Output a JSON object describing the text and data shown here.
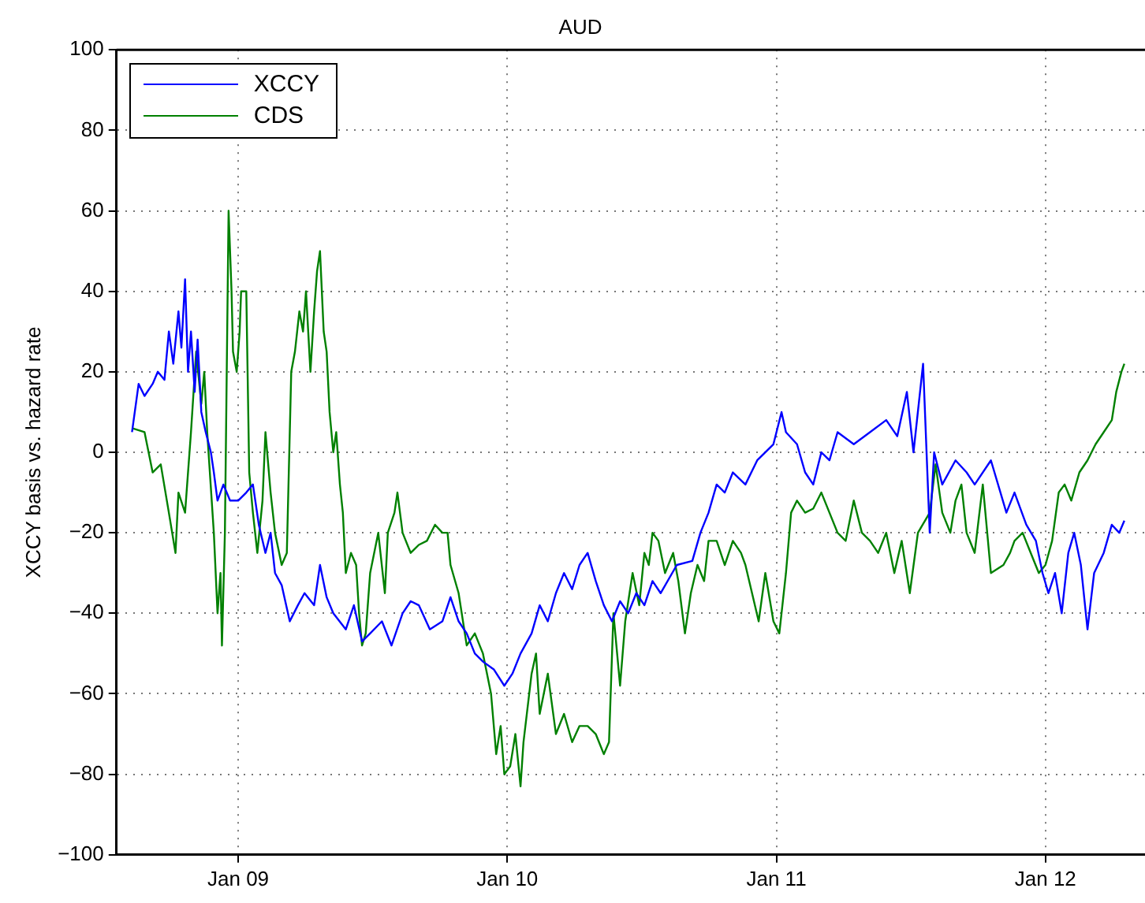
{
  "chart_data": {
    "type": "line",
    "title": "AUD",
    "ylabel": "XCCY basis vs. hazard rate",
    "xlim": [
      "2008-07-20",
      "2012-05-15"
    ],
    "xticks": [
      {
        "value": "2009-01-01",
        "label": "Jan 09"
      },
      {
        "value": "2010-01-01",
        "label": "Jan 10"
      },
      {
        "value": "2011-01-01",
        "label": "Jan 11"
      },
      {
        "value": "2012-01-01",
        "label": "Jan 12"
      }
    ],
    "ylim": [
      -100,
      100
    ],
    "yticks": [
      -100,
      -80,
      -60,
      -40,
      -20,
      0,
      20,
      40,
      60,
      80,
      100
    ],
    "grid": true,
    "legend": "top left",
    "line_style": "solid",
    "series": [
      {
        "name": "XCCY",
        "color": "#0000ff",
        "x": [
          "2008-08-10",
          "2008-08-19",
          "2008-08-27",
          "2008-09-07",
          "2008-09-14",
          "2008-09-23",
          "2008-09-29",
          "2008-10-05",
          "2008-10-12",
          "2008-10-16",
          "2008-10-21",
          "2008-10-25",
          "2008-10-29",
          "2008-11-03",
          "2008-11-07",
          "2008-11-12",
          "2008-11-18",
          "2008-11-25",
          "2008-11-29",
          "2008-12-04",
          "2008-12-12",
          "2008-12-21",
          "2009-01-01",
          "2009-01-12",
          "2009-01-21",
          "2009-01-29",
          "2009-02-07",
          "2009-02-14",
          "2009-02-20",
          "2009-03-01",
          "2009-03-12",
          "2009-03-23",
          "2009-04-01",
          "2009-04-14",
          "2009-04-22",
          "2009-05-01",
          "2009-05-10",
          "2009-05-27",
          "2009-06-07",
          "2009-06-18",
          "2009-06-29",
          "2009-07-15",
          "2009-07-28",
          "2009-08-12",
          "2009-08-23",
          "2009-09-03",
          "2009-09-18",
          "2009-10-05",
          "2009-10-16",
          "2009-10-27",
          "2009-11-07",
          "2009-11-18",
          "2009-11-29",
          "2009-12-14",
          "2009-12-28",
          "2010-01-08",
          "2010-01-19",
          "2010-02-03",
          "2010-02-14",
          "2010-02-25",
          "2010-03-08",
          "2010-03-19",
          "2010-03-30",
          "2010-04-09",
          "2010-04-20",
          "2010-05-01",
          "2010-05-12",
          "2010-05-23",
          "2010-06-03",
          "2010-06-14",
          "2010-06-25",
          "2010-07-06",
          "2010-07-17",
          "2010-07-28",
          "2010-08-19",
          "2010-09-09",
          "2010-09-20",
          "2010-10-01",
          "2010-10-12",
          "2010-10-23",
          "2010-11-03",
          "2010-11-20",
          "2010-12-06",
          "2010-12-28",
          "2011-01-08",
          "2011-01-14",
          "2011-01-29",
          "2011-02-09",
          "2011-02-20",
          "2011-03-03",
          "2011-03-14",
          "2011-03-25",
          "2011-04-16",
          "2011-05-08",
          "2011-05-30",
          "2011-06-14",
          "2011-06-27",
          "2011-07-06",
          "2011-07-19",
          "2011-07-28",
          "2011-08-03",
          "2011-08-14",
          "2011-09-01",
          "2011-09-16",
          "2011-09-27",
          "2011-10-19",
          "2011-11-09",
          "2011-11-20",
          "2011-12-06",
          "2011-12-19",
          "2011-12-28",
          "2012-01-05",
          "2012-01-14",
          "2012-01-23",
          "2012-02-01",
          "2012-02-09",
          "2012-02-18",
          "2012-02-27",
          "2012-03-07",
          "2012-03-20",
          "2012-03-31",
          "2012-04-10",
          "2012-04-17"
        ],
        "values": [
          5,
          17,
          14,
          17,
          20,
          18,
          30,
          22,
          35,
          26,
          43,
          20,
          30,
          15,
          28,
          10,
          5,
          0,
          -5,
          -12,
          -8,
          -12,
          -12,
          -10,
          -8,
          -18,
          -25,
          -20,
          -30,
          -33,
          -42,
          -38,
          -35,
          -38,
          -28,
          -36,
          -40,
          -44,
          -38,
          -47,
          -45,
          -42,
          -48,
          -40,
          -37,
          -38,
          -44,
          -42,
          -36,
          -42,
          -45,
          -50,
          -52,
          -54,
          -58,
          -55,
          -50,
          -45,
          -38,
          -42,
          -35,
          -30,
          -34,
          -28,
          -25,
          -32,
          -38,
          -42,
          -37,
          -40,
          -35,
          -38,
          -32,
          -35,
          -28,
          -27,
          -20,
          -15,
          -8,
          -10,
          -5,
          -8,
          -2,
          2,
          10,
          5,
          2,
          -5,
          -8,
          0,
          -2,
          5,
          2,
          5,
          8,
          4,
          15,
          0,
          22,
          -20,
          0,
          -8,
          -2,
          -5,
          -8,
          -2,
          -15,
          -10,
          -18,
          -22,
          -30,
          -35,
          -30,
          -40,
          -25,
          -20,
          -28,
          -44,
          -30,
          -25,
          -18,
          -20,
          -17
        ]
      },
      {
        "name": "CDS",
        "color": "#008000",
        "x": [
          "2008-08-10",
          "2008-08-27",
          "2008-09-07",
          "2008-09-18",
          "2008-09-29",
          "2008-10-08",
          "2008-10-12",
          "2008-10-21",
          "2008-10-29",
          "2008-11-05",
          "2008-11-12",
          "2008-11-16",
          "2008-11-20",
          "2008-11-29",
          "2008-12-04",
          "2008-12-08",
          "2008-12-10",
          "2008-12-14",
          "2008-12-19",
          "2008-12-23",
          "2008-12-25",
          "2008-12-30",
          "2009-01-03",
          "2009-01-05",
          "2009-01-12",
          "2009-01-16",
          "2009-01-21",
          "2009-01-27",
          "2009-02-03",
          "2009-02-07",
          "2009-02-14",
          "2009-02-20",
          "2009-03-01",
          "2009-03-08",
          "2009-03-14",
          "2009-03-19",
          "2009-03-25",
          "2009-03-30",
          "2009-04-03",
          "2009-04-09",
          "2009-04-14",
          "2009-04-18",
          "2009-04-22",
          "2009-04-27",
          "2009-05-01",
          "2009-05-05",
          "2009-05-10",
          "2009-05-14",
          "2009-05-19",
          "2009-05-23",
          "2009-05-27",
          "2009-06-03",
          "2009-06-10",
          "2009-06-14",
          "2009-06-18",
          "2009-06-23",
          "2009-06-29",
          "2009-07-10",
          "2009-07-19",
          "2009-07-23",
          "2009-08-01",
          "2009-08-05",
          "2009-08-12",
          "2009-08-23",
          "2009-09-03",
          "2009-09-14",
          "2009-09-25",
          "2009-10-05",
          "2009-10-12",
          "2009-10-16",
          "2009-10-27",
          "2009-11-07",
          "2009-11-18",
          "2009-11-29",
          "2009-12-10",
          "2009-12-17",
          "2009-12-23",
          "2009-12-28",
          "2010-01-05",
          "2010-01-12",
          "2010-01-19",
          "2010-01-23",
          "2010-02-03",
          "2010-02-09",
          "2010-02-14",
          "2010-02-25",
          "2010-03-08",
          "2010-03-19",
          "2010-03-30",
          "2010-04-09",
          "2010-04-20",
          "2010-05-01",
          "2010-05-12",
          "2010-05-19",
          "2010-05-25",
          "2010-05-30",
          "2010-06-03",
          "2010-06-10",
          "2010-06-20",
          "2010-06-29",
          "2010-07-06",
          "2010-07-12",
          "2010-07-17",
          "2010-07-25",
          "2010-08-03",
          "2010-08-14",
          "2010-08-21",
          "2010-08-30",
          "2010-09-07",
          "2010-09-16",
          "2010-09-25",
          "2010-10-01",
          "2010-10-12",
          "2010-10-23",
          "2010-11-03",
          "2010-11-14",
          "2010-11-20",
          "2010-11-29",
          "2010-12-08",
          "2010-12-17",
          "2010-12-28",
          "2011-01-05",
          "2011-01-14",
          "2011-01-21",
          "2011-01-29",
          "2011-02-09",
          "2011-02-20",
          "2011-03-03",
          "2011-03-14",
          "2011-03-25",
          "2011-04-05",
          "2011-04-16",
          "2011-04-27",
          "2011-05-08",
          "2011-05-19",
          "2011-05-30",
          "2011-06-10",
          "2011-06-20",
          "2011-07-01",
          "2011-07-12",
          "2011-07-28",
          "2011-08-05",
          "2011-08-14",
          "2011-08-25",
          "2011-09-01",
          "2011-09-09",
          "2011-09-16",
          "2011-09-27",
          "2011-10-08",
          "2011-10-19",
          "2011-11-05",
          "2011-11-14",
          "2011-11-20",
          "2011-12-01",
          "2011-12-12",
          "2011-12-23",
          "2012-01-01",
          "2012-01-10",
          "2012-01-19",
          "2012-01-27",
          "2012-02-05",
          "2012-02-16",
          "2012-02-27",
          "2012-03-09",
          "2012-03-20",
          "2012-03-31",
          "2012-04-06",
          "2012-04-13",
          "2012-04-17"
        ],
        "values": [
          6,
          5,
          -5,
          -3,
          -15,
          -25,
          -10,
          -15,
          5,
          25,
          12,
          20,
          5,
          -20,
          -40,
          -30,
          -48,
          -20,
          60,
          40,
          25,
          20,
          30,
          40,
          40,
          -5,
          -15,
          -25,
          -12,
          5,
          -10,
          -20,
          -28,
          -25,
          20,
          25,
          35,
          30,
          40,
          20,
          35,
          45,
          50,
          30,
          25,
          10,
          0,
          5,
          -8,
          -15,
          -30,
          -25,
          -28,
          -40,
          -48,
          -45,
          -30,
          -20,
          -35,
          -20,
          -15,
          -10,
          -20,
          -25,
          -23,
          -22,
          -18,
          -20,
          -20,
          -28,
          -35,
          -48,
          -45,
          -50,
          -60,
          -75,
          -68,
          -80,
          -78,
          -70,
          -83,
          -72,
          -55,
          -50,
          -65,
          -55,
          -70,
          -65,
          -72,
          -68,
          -68,
          -70,
          -75,
          -72,
          -40,
          -50,
          -58,
          -42,
          -30,
          -38,
          -25,
          -28,
          -20,
          -22,
          -30,
          -25,
          -32,
          -45,
          -35,
          -28,
          -32,
          -22,
          -22,
          -28,
          -22,
          -25,
          -28,
          -35,
          -42,
          -30,
          -42,
          -45,
          -30,
          -15,
          -12,
          -15,
          -14,
          -10,
          -15,
          -20,
          -22,
          -12,
          -20,
          -22,
          -25,
          -20,
          -30,
          -22,
          -35,
          -20,
          -15,
          -3,
          -15,
          -20,
          -12,
          -8,
          -20,
          -25,
          -8,
          -30,
          -28,
          -25,
          -22,
          -20,
          -25,
          -30,
          -28,
          -22,
          -10,
          -8,
          -12,
          -5,
          -2,
          2,
          5,
          8,
          15,
          20,
          22
        ]
      }
    ]
  }
}
